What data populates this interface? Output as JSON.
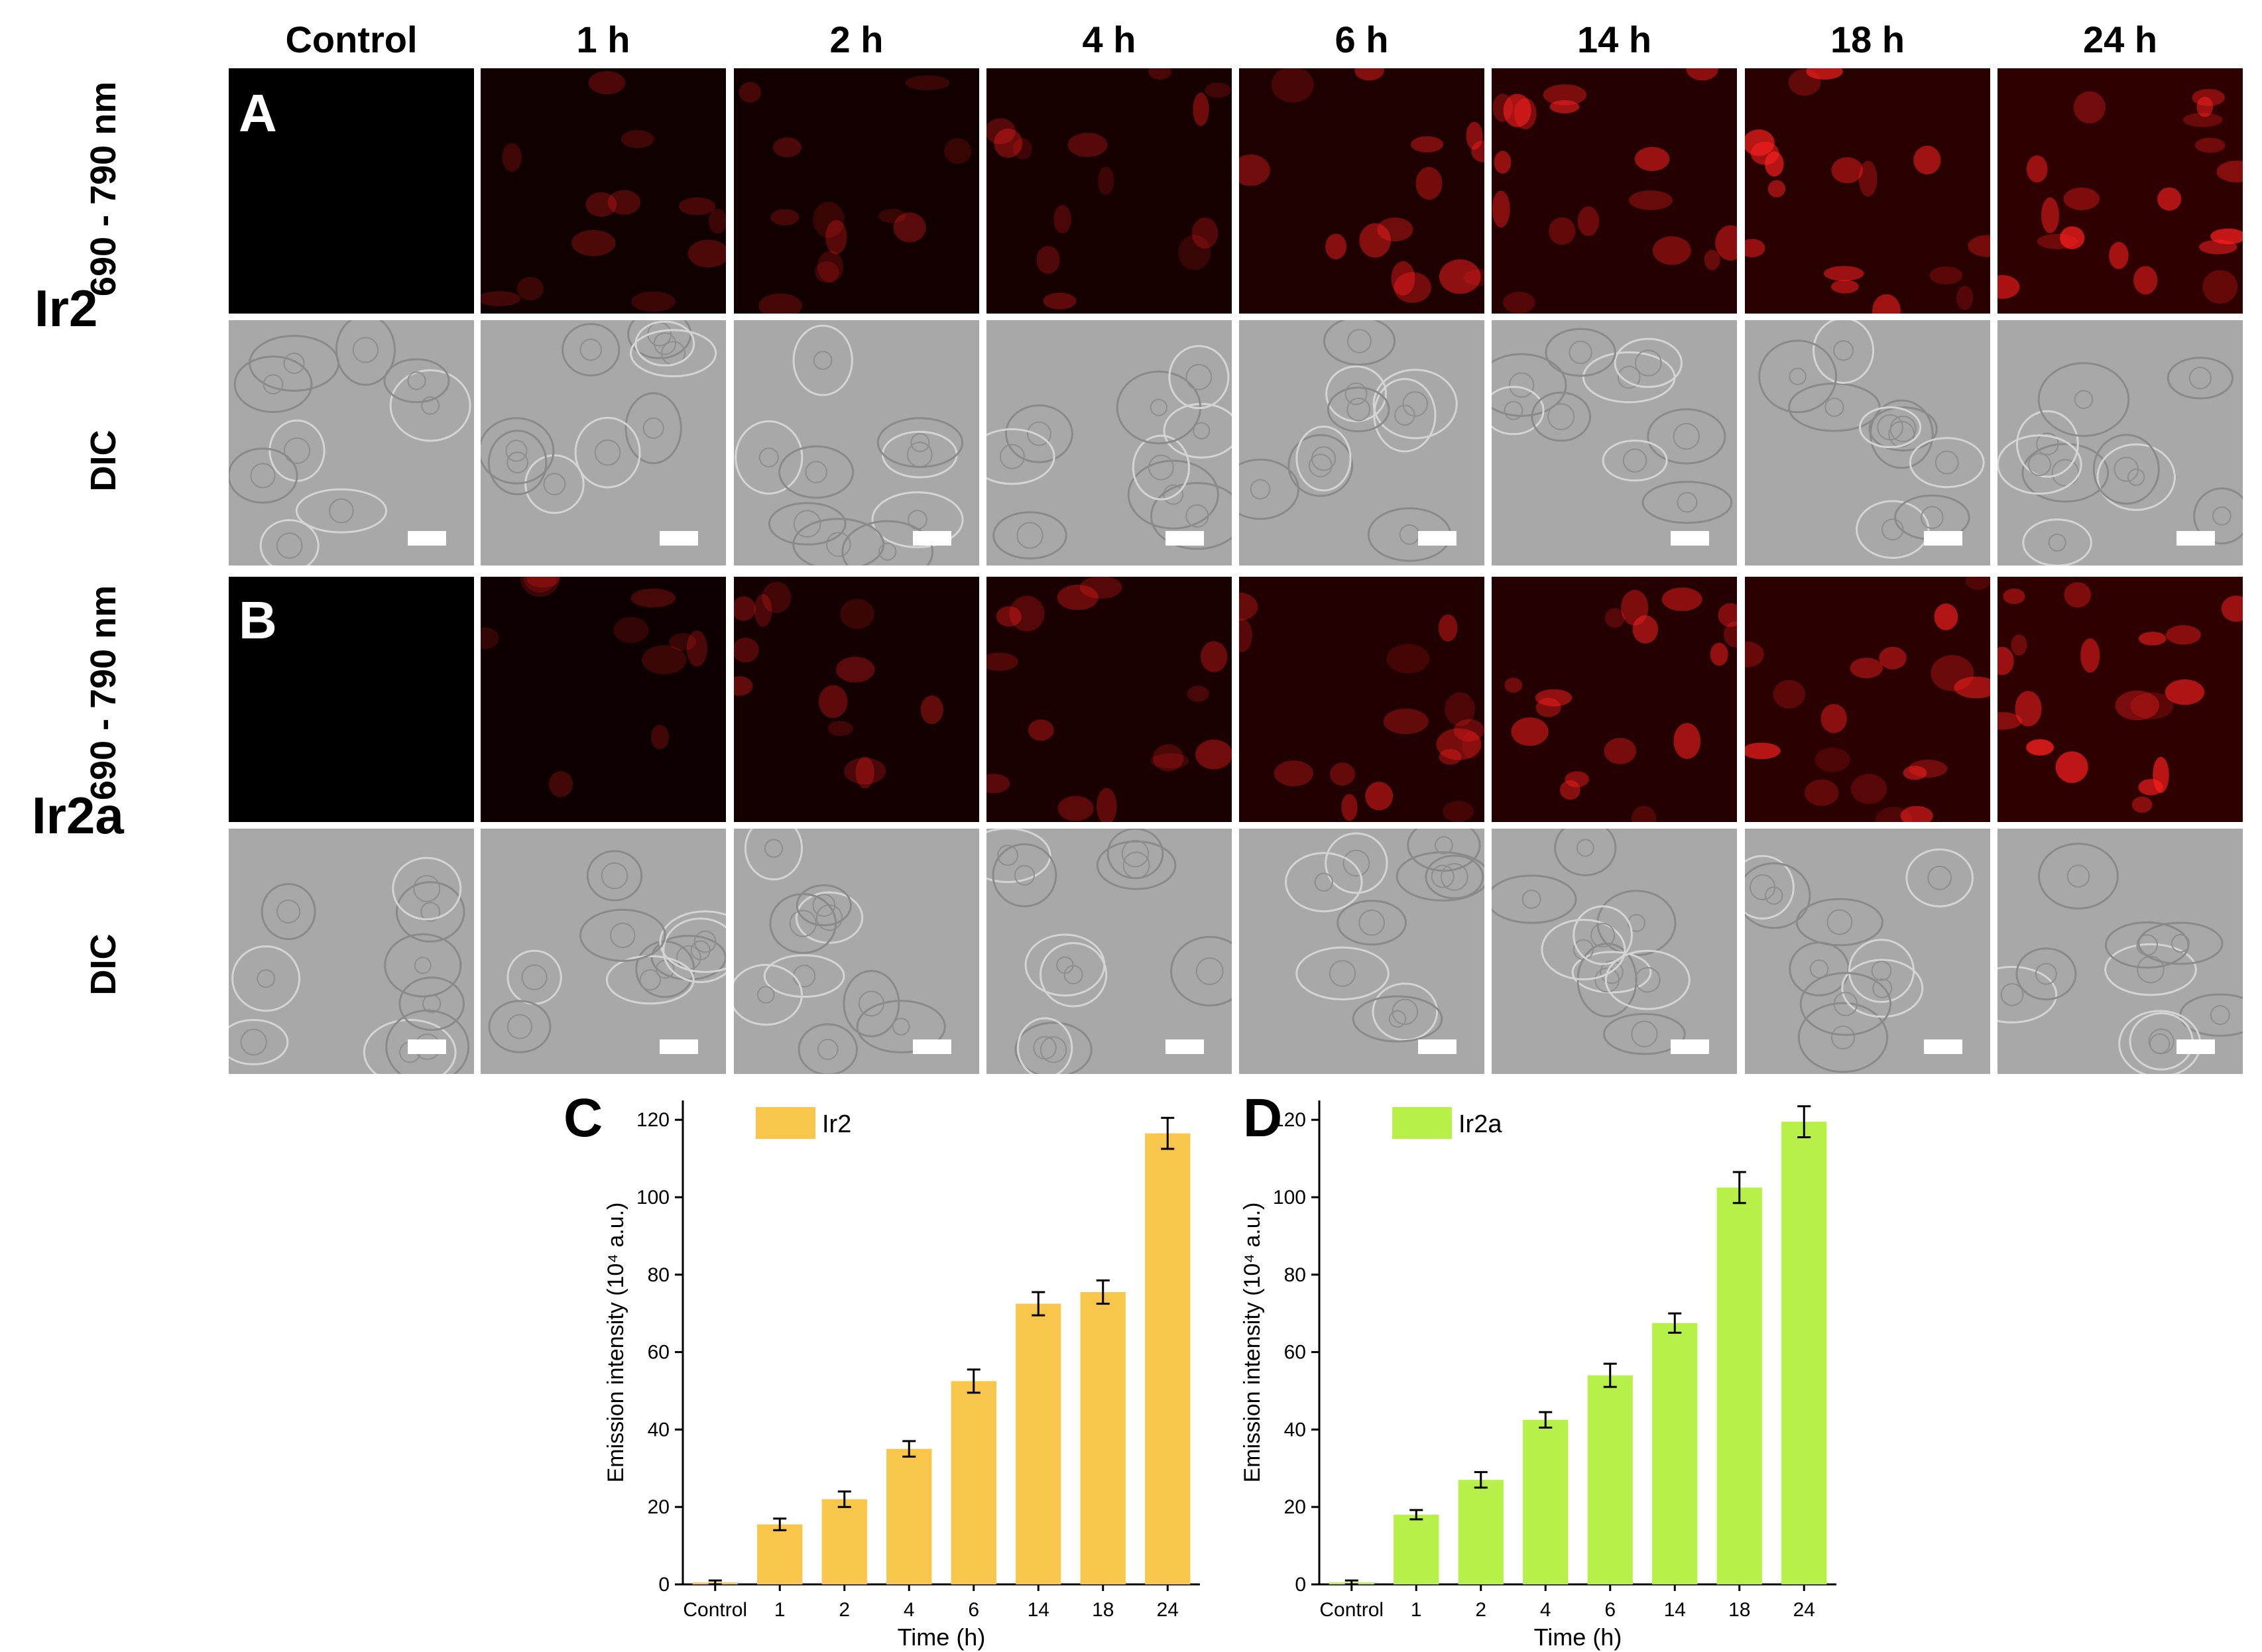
{
  "columns": [
    "Control",
    "1 h",
    "2 h",
    "4 h",
    "6 h",
    "14 h",
    "18 h",
    "24 h"
  ],
  "panel_a": {
    "letter": "A",
    "compound": "Ir2",
    "fluor_label": "690 - 790 nm",
    "dic_label": "DIC"
  },
  "panel_b": {
    "letter": "B",
    "compound": "Ir2a",
    "fluor_label": "690 - 790 nm",
    "dic_label": "DIC"
  },
  "fluor_intensity_a": [
    0,
    0.2,
    0.25,
    0.35,
    0.55,
    0.7,
    0.8,
    0.95
  ],
  "fluor_intensity_b": [
    0,
    0.15,
    0.3,
    0.45,
    0.6,
    0.7,
    0.85,
    0.95
  ],
  "colors": {
    "ir2_bar": "#F7C64A",
    "ir2a_bar": "#B8F04A",
    "fluor": "#ff2020"
  },
  "chart_data": [
    {
      "letter": "C",
      "type": "bar",
      "categories": [
        "Control",
        "1",
        "2",
        "4",
        "6",
        "14",
        "18",
        "24"
      ],
      "series": [
        {
          "name": "Ir2",
          "values": [
            0.5,
            15.5,
            22,
            35,
            52.5,
            72.5,
            75.5,
            116.5
          ],
          "errors": [
            0.5,
            1.5,
            2,
            2,
            3,
            3,
            3,
            4
          ]
        }
      ],
      "xlabel": "Time (h)",
      "ylabel": "Emission intensity (10⁴ a.u.)",
      "ylim": [
        0,
        125
      ],
      "yticks": [
        0,
        20,
        40,
        60,
        80,
        100,
        120
      ],
      "legend": "top-left"
    },
    {
      "letter": "D",
      "type": "bar",
      "categories": [
        "Control",
        "1",
        "2",
        "4",
        "6",
        "14",
        "18",
        "24"
      ],
      "series": [
        {
          "name": "Ir2a",
          "values": [
            0.5,
            18,
            27,
            42.5,
            54,
            67.5,
            102.5,
            119.5
          ],
          "errors": [
            0.5,
            1.2,
            2,
            2,
            3,
            2.5,
            4,
            4
          ]
        }
      ],
      "xlabel": "Time (h)",
      "ylabel": "Emission intensity (10⁴ a.u.)",
      "ylim": [
        0,
        125
      ],
      "yticks": [
        0,
        20,
        40,
        60,
        80,
        100,
        120
      ],
      "legend": "top-left"
    }
  ]
}
